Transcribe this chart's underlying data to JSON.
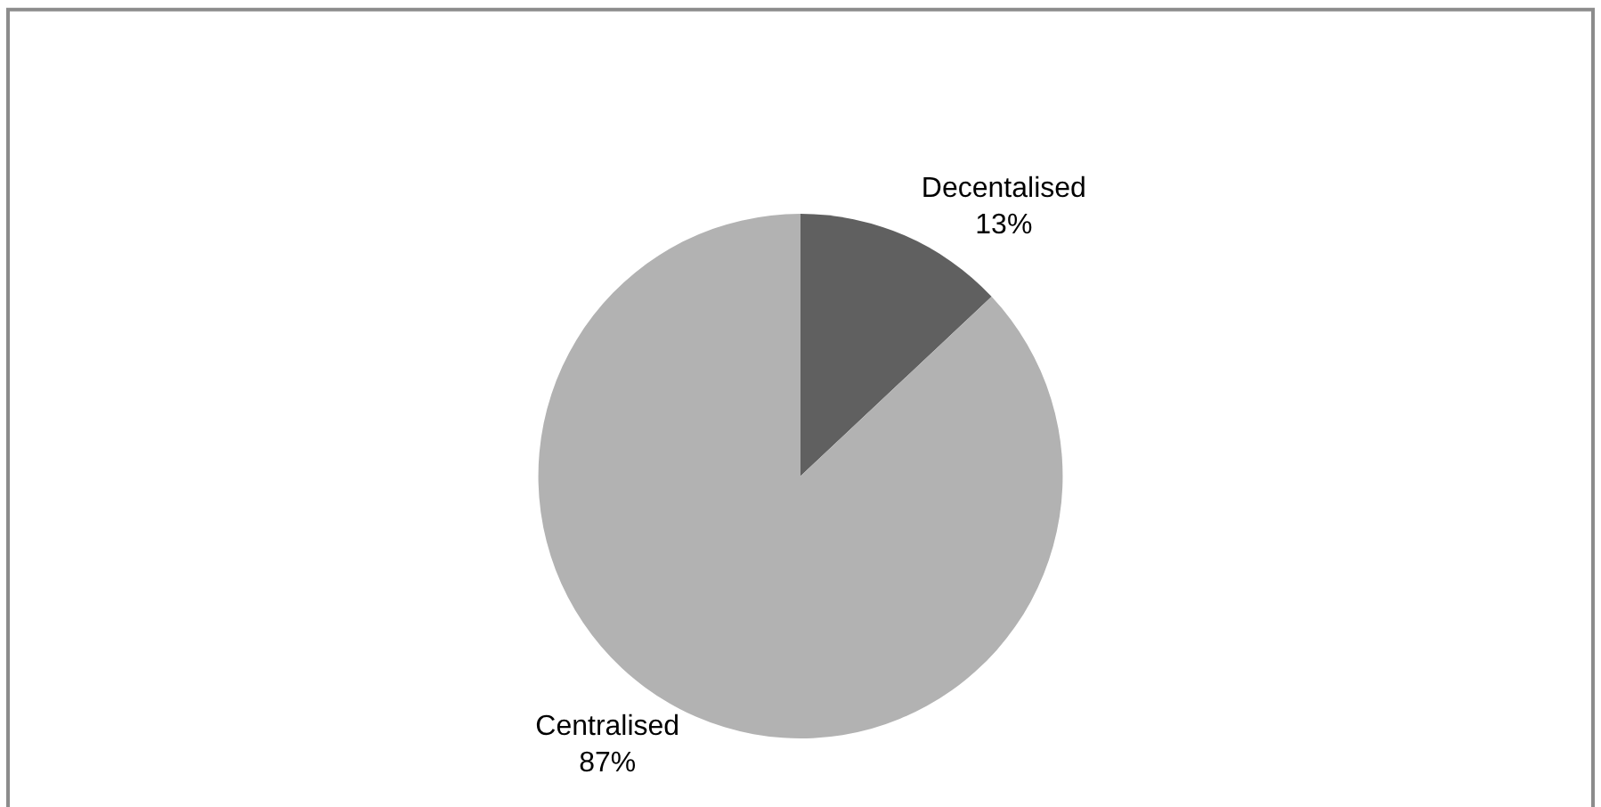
{
  "chart_data": {
    "type": "pie",
    "categories": [
      "Decentalised",
      "Centralised"
    ],
    "values": [
      13,
      87
    ],
    "colors": [
      "#606060",
      "#b2b2b2"
    ],
    "value_labels": [
      "13%",
      "87%"
    ],
    "legend": false
  }
}
